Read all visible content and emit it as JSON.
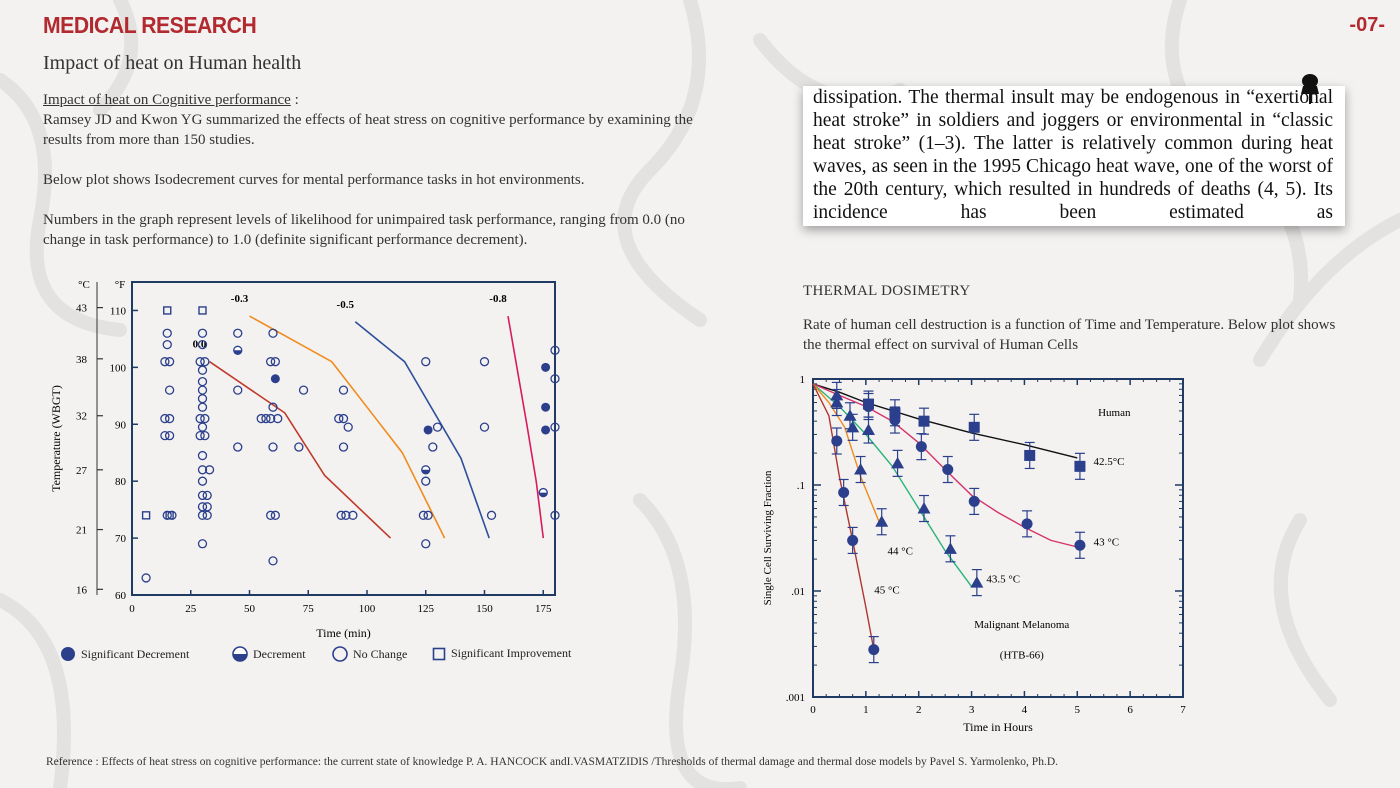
{
  "header": {
    "brand": "MEDICAL RESEARCH",
    "page_number": "-07-",
    "subtitle": "Impact of heat on Human health"
  },
  "left": {
    "heading_link": "Impact of heat on Cognitive performance",
    "heading_suffix": " :",
    "para1": "Ramsey JD and Kwon YG summarized the effects of heat stress on cognitive performance by examining the results from more than 150 studies.",
    "para2": "Below plot shows Isodecrement curves for mental performance tasks in hot environments.",
    "para3": "Numbers in the graph represent levels of likelihood for unimpaired task performance, ranging from 0.0 (no change in task performance) to 1.0 (definite significant performance decrement)."
  },
  "quote": {
    "text": "dissipation. The thermal insult may be endogenous in “exertional heat stroke” in soldiers and joggers or environmental in “classic heat stroke” (1–3). The latter is relatively common during heat waves, as seen in the 1995 Chicago heat wave, one of the worst of the 20th century, which resulted in hundreds of deaths (4, 5). Its incidence has been estimated as"
  },
  "right": {
    "section_title": "THERMAL DOSIMETRY",
    "section_text": "Rate of human cell destruction is a function of Time and Temperature.   Below plot shows the thermal effect on survival of Human Cells"
  },
  "legend": {
    "significant_decrement": "Significant Decrement",
    "decrement": "Decrement",
    "no_change": "No Change",
    "significant_improvement": "Significant Improvement"
  },
  "reference": "Reference : Effects of heat stress on cognitive performance: the current state of knowledge P. A. HANCOCK  andI.VASMATZIDIS /Thresholds of thermal damage and thermal dose models by Pavel S. Yarmolenko, Ph.D.",
  "colors": {
    "brand": "#b22a2f",
    "axis": "#1f3b63",
    "marker": "#2b3f8c",
    "curve_0": "#c0392b",
    "curve_03": "#f08c1e",
    "curve_05": "#2e4f9a",
    "curve_08": "#d81b60"
  },
  "chart_data": [
    {
      "type": "scatter",
      "xlabel": "Time (min)",
      "ylabel": "Temperature (WBGT)",
      "xlim": [
        0,
        180
      ],
      "ylim": [
        60,
        115
      ],
      "x_ticks": [
        0,
        25,
        50,
        75,
        100,
        125,
        150,
        175
      ],
      "y_ticks_f": [
        60,
        70,
        80,
        90,
        100,
        110
      ],
      "y_ticks_c": [
        {
          "v": 61,
          "label": "16"
        },
        {
          "v": 71.5,
          "label": "21"
        },
        {
          "v": 82,
          "label": "27"
        },
        {
          "v": 91.5,
          "label": "32"
        },
        {
          "v": 101.5,
          "label": "38"
        },
        {
          "v": 110.5,
          "label": "43"
        }
      ],
      "unit_c": "°C",
      "unit_f": "°F",
      "curves": [
        {
          "name": "0.0",
          "color_key": "curve_0",
          "points": [
            [
              33,
              101
            ],
            [
              65,
              92
            ],
            [
              82,
              81
            ],
            [
              110,
              70
            ]
          ]
        },
        {
          "name": "-0.3",
          "color_key": "curve_03",
          "points": [
            [
              50,
              109
            ],
            [
              85,
              101
            ],
            [
              115,
              85
            ],
            [
              133,
              70
            ]
          ]
        },
        {
          "name": "-0.5",
          "color_key": "curve_05",
          "points": [
            [
              95,
              108
            ],
            [
              116,
              101
            ],
            [
              140,
              84
            ],
            [
              152,
              70
            ]
          ]
        },
        {
          "name": "-0.8",
          "color_key": "curve_08",
          "points": [
            [
              160,
              109
            ],
            [
              168,
              90
            ],
            [
              172,
              80
            ],
            [
              175,
              70
            ]
          ]
        }
      ],
      "points": [
        {
          "kind": "improvement",
          "pts": [
            [
              15,
              110
            ],
            [
              30,
              110
            ],
            [
              6,
              74
            ],
            [
              16,
              74
            ]
          ]
        },
        {
          "kind": "no_change",
          "pts": [
            [
              15,
              106
            ],
            [
              30,
              106
            ],
            [
              45,
              106
            ],
            [
              15,
              104
            ],
            [
              30,
              104
            ],
            [
              60,
              106
            ],
            [
              14,
              101
            ],
            [
              16,
              101
            ],
            [
              29,
              101
            ],
            [
              31,
              101
            ],
            [
              59,
              101
            ],
            [
              61,
              101
            ],
            [
              30,
              99.5
            ],
            [
              30,
              97.5
            ],
            [
              16,
              96
            ],
            [
              30,
              96
            ],
            [
              45,
              96
            ],
            [
              73,
              96
            ],
            [
              90,
              96
            ],
            [
              30,
              94.5
            ],
            [
              30,
              93
            ],
            [
              60,
              93
            ],
            [
              14,
              91
            ],
            [
              16,
              91
            ],
            [
              29,
              91
            ],
            [
              31,
              91
            ],
            [
              55,
              91
            ],
            [
              57,
              91
            ],
            [
              59,
              91
            ],
            [
              62,
              91
            ],
            [
              88,
              91
            ],
            [
              90,
              91
            ],
            [
              30,
              89.5
            ],
            [
              92,
              89.5
            ],
            [
              130,
              89.5
            ],
            [
              150,
              89.5
            ],
            [
              180,
              89.5
            ],
            [
              14,
              88
            ],
            [
              16,
              88
            ],
            [
              29,
              88
            ],
            [
              31,
              88
            ],
            [
              45,
              86
            ],
            [
              60,
              86
            ],
            [
              71,
              86
            ],
            [
              90,
              86
            ],
            [
              128,
              86
            ],
            [
              30,
              84.5
            ],
            [
              30,
              82
            ],
            [
              33,
              82
            ],
            [
              30,
              80
            ],
            [
              125,
              80
            ],
            [
              30,
              77.5
            ],
            [
              32,
              77.5
            ],
            [
              30,
              75.5
            ],
            [
              32,
              75.5
            ],
            [
              15,
              74
            ],
            [
              17,
              74
            ],
            [
              30,
              74
            ],
            [
              32,
              74
            ],
            [
              59,
              74
            ],
            [
              61,
              74
            ],
            [
              89,
              74
            ],
            [
              91,
              74
            ],
            [
              94,
              74
            ],
            [
              124,
              74
            ],
            [
              126,
              74
            ],
            [
              153,
              74
            ],
            [
              180,
              74
            ],
            [
              30,
              69
            ],
            [
              125,
              69
            ],
            [
              60,
              66
            ],
            [
              6,
              63
            ],
            [
              180,
              98
            ],
            [
              180,
              103
            ],
            [
              125,
              101
            ],
            [
              150,
              101
            ]
          ]
        },
        {
          "kind": "decrement",
          "pts": [
            [
              45,
              103
            ],
            [
              125,
              82
            ],
            [
              175,
              78
            ]
          ]
        },
        {
          "kind": "significant",
          "pts": [
            [
              61,
              98
            ],
            [
              176,
              100
            ],
            [
              176,
              93
            ],
            [
              176,
              89
            ],
            [
              126,
              89
            ]
          ]
        }
      ]
    },
    {
      "type": "line",
      "xlabel": "Time in Hours",
      "ylabel": "Single Cell Surviving Fraction",
      "xlim": [
        0,
        7
      ],
      "ylim": [
        0.001,
        1
      ],
      "yscale": "log",
      "x_ticks": [
        0,
        1,
        2,
        3,
        4,
        5,
        6,
        7
      ],
      "y_ticks": [
        {
          "v": 1,
          "label": "1"
        },
        {
          "v": 0.1,
          "label": ".1"
        },
        {
          "v": 0.01,
          "label": ".01"
        },
        {
          "v": 0.001,
          "label": ".001"
        }
      ],
      "annotations": [
        "Malignant Melanoma",
        "(HTB-66)"
      ],
      "series": [
        {
          "name": "Human",
          "color": "#111111",
          "marker": "square",
          "curve": [
            [
              0,
              0.9
            ],
            [
              0.5,
              0.75
            ],
            [
              1,
              0.6
            ],
            [
              2,
              0.42
            ],
            [
              3,
              0.31
            ],
            [
              4,
              0.24
            ],
            [
              5,
              0.18
            ]
          ],
          "x": [
            1.05,
            1.55,
            2.1,
            3.05,
            4.1,
            5.05
          ],
          "y": [
            0.58,
            0.48,
            0.4,
            0.35,
            0.19,
            0.15
          ]
        },
        {
          "name": "42.5°C",
          "color": "#d6336c",
          "marker": "circle",
          "curve": [
            [
              0,
              0.9
            ],
            [
              0.5,
              0.7
            ],
            [
              1,
              0.55
            ],
            [
              1.5,
              0.4
            ],
            [
              2,
              0.25
            ],
            [
              2.5,
              0.14
            ],
            [
              3,
              0.08
            ],
            [
              3.5,
              0.055
            ],
            [
              4,
              0.04
            ],
            [
              4.5,
              0.03
            ],
            [
              5,
              0.026
            ]
          ],
          "x": [
            1.05,
            1.55,
            2.05,
            2.55,
            3.05,
            4.05,
            5.05
          ],
          "y": [
            0.55,
            0.41,
            0.23,
            0.14,
            0.07,
            0.043,
            0.027
          ]
        },
        {
          "name": "43.5 °C",
          "color": "#2bb37a",
          "marker": "triangle",
          "curve": [
            [
              0,
              0.9
            ],
            [
              0.5,
              0.55
            ],
            [
              1,
              0.3
            ],
            [
              1.5,
              0.15
            ],
            [
              2,
              0.06
            ],
            [
              2.5,
              0.024
            ],
            [
              3,
              0.011
            ]
          ],
          "x": [
            0.45,
            0.7,
            1.05,
            1.6,
            2.1,
            2.6,
            3.1
          ],
          "y": [
            0.6,
            0.45,
            0.33,
            0.16,
            0.06,
            0.025,
            0.012
          ]
        },
        {
          "name": "44 °C",
          "color": "#f08c1e",
          "marker": "triangle",
          "curve": [
            [
              0,
              0.9
            ],
            [
              0.3,
              0.6
            ],
            [
              0.6,
              0.35
            ],
            [
              0.9,
              0.12
            ],
            [
              1.25,
              0.045
            ]
          ],
          "x": [
            0.45,
            0.75,
            0.9,
            1.3
          ],
          "y": [
            0.7,
            0.35,
            0.14,
            0.045
          ]
        },
        {
          "name": "45 °C",
          "color": "#b0362e",
          "marker": "circle",
          "curve": [
            [
              0,
              0.9
            ],
            [
              0.3,
              0.45
            ],
            [
              0.5,
              0.12
            ],
            [
              0.75,
              0.03
            ],
            [
              1,
              0.007
            ],
            [
              1.15,
              0.0028
            ]
          ],
          "x": [
            0.45,
            0.58,
            0.75,
            1.15
          ],
          "y": [
            0.26,
            0.085,
            0.03,
            0.0028
          ]
        }
      ]
    }
  ]
}
